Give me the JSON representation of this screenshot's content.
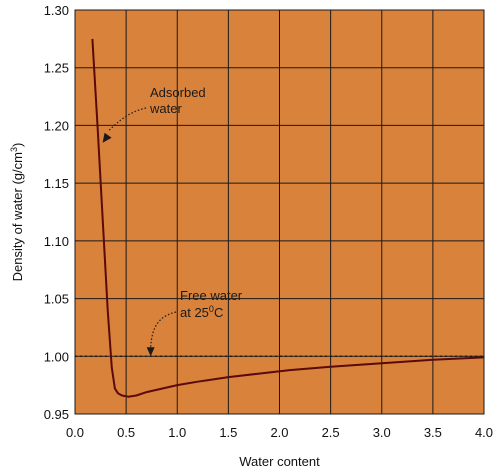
{
  "colors": {
    "plot_background": "#d9823b",
    "grid": "#1a1a1a",
    "curve": "#5a0a0a",
    "reference_line": "#1a1a1a"
  },
  "chart_data": {
    "type": "line",
    "xlabel": "Water content",
    "ylabel": {
      "prefix": "Density of water (g/cm",
      "superscript": "3",
      "suffix": ")"
    },
    "xlim": [
      0,
      4
    ],
    "ylim": [
      0.95,
      1.3
    ],
    "xticks": [
      "0.0",
      "0.5",
      "1.0",
      "1.5",
      "2.0",
      "2.5",
      "3.0",
      "3.5",
      "4.0"
    ],
    "yticks": [
      "0.95",
      "1.00",
      "1.05",
      "1.10",
      "1.15",
      "1.20",
      "1.25",
      "1.30"
    ],
    "grid": true,
    "series": [
      {
        "x": [
          0.17,
          0.22,
          0.27,
          0.32,
          0.36,
          0.39,
          0.42,
          0.46,
          0.52,
          0.6,
          0.7,
          0.85,
          1.0,
          1.2,
          1.5,
          1.8,
          2.1,
          2.5,
          3.0,
          3.5,
          4.0
        ],
        "y": [
          1.275,
          1.2,
          1.12,
          1.04,
          0.99,
          0.972,
          0.968,
          0.966,
          0.965,
          0.966,
          0.969,
          0.972,
          0.975,
          0.978,
          0.982,
          0.985,
          0.988,
          0.991,
          0.994,
          0.997,
          0.999
        ]
      }
    ],
    "reference_line": {
      "y": 1.0,
      "style": "dotted"
    },
    "annotations": [
      {
        "lines": [
          "Adsorbed",
          "water"
        ],
        "anchor": {
          "x": 0.27,
          "y": 1.185
        }
      },
      {
        "lines": [
          {
            "text": "Free water"
          },
          {
            "prefix": "at 25",
            "superscript": "0",
            "suffix": "C"
          }
        ],
        "anchor": {
          "x": 0.74,
          "y": 1.0
        }
      }
    ]
  }
}
